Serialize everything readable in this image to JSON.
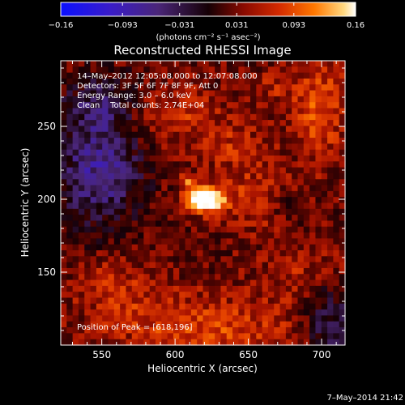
{
  "chart_data": {
    "type": "heatmap",
    "title": "Reconstructed RHESSI Image",
    "xlabel": "Heliocentric X (arcsec)",
    "ylabel": "Heliocentric Y (arcsec)",
    "xlim": [
      522,
      716
    ],
    "ylim": [
      100,
      295
    ],
    "x_ticks": [
      550,
      600,
      650,
      700
    ],
    "y_ticks": [
      150,
      200,
      250
    ],
    "colorbar": {
      "unit_label": "(photons cm⁻² s⁻¹ asec⁻²)",
      "range": [
        -0.16,
        0.16
      ],
      "tick_values": [
        -0.16,
        -0.093,
        -0.031,
        0.031,
        0.093,
        0.16
      ],
      "tick_labels": [
        "−0.16",
        "−0.093",
        "−0.031",
        "0.031",
        "0.093",
        "0.16"
      ]
    },
    "info_lines": [
      "14–May–2012 12:05:08.000 to 12:07:08.000",
      "Detectors: 3F 5F 6F 7F 8F 9F, Att 0",
      "Energy Range: 3.0 – 6.0 keV",
      "Clean    Total counts: 2.74E+04"
    ],
    "peak_label": "Position of Peak = [618,196]",
    "peak_position": [
      618,
      196
    ],
    "timestamp": "7–May–2014 21:42",
    "intensity_grid": {
      "cols": 48,
      "rows": 48,
      "x_range": [
        522,
        716
      ],
      "y_range": [
        100,
        295
      ],
      "seed": 7,
      "sources": [
        {
          "x": 620,
          "y": 200,
          "sx": 9,
          "sy": 6,
          "amp": 0.2
        },
        {
          "x": 610,
          "y": 213,
          "sx": 4,
          "sy": 3,
          "amp": 0.07
        },
        {
          "x": 655,
          "y": 200,
          "sx": 16,
          "sy": 14,
          "amp": 0.045
        },
        {
          "x": 698,
          "y": 262,
          "sx": 13,
          "sy": 26,
          "amp": 0.06
        },
        {
          "x": 668,
          "y": 278,
          "sx": 10,
          "sy": 8,
          "amp": 0.03
        },
        {
          "x": 600,
          "y": 258,
          "sx": 25,
          "sy": 14,
          "amp": 0.04
        },
        {
          "x": 620,
          "y": 110,
          "sx": 45,
          "sy": 18,
          "amp": 0.055
        },
        {
          "x": 560,
          "y": 140,
          "sx": 20,
          "sy": 15,
          "amp": 0.035
        },
        {
          "x": 690,
          "y": 150,
          "sx": 22,
          "sy": 16,
          "amp": 0.03
        },
        {
          "x": 640,
          "y": 235,
          "sx": 18,
          "sy": 12,
          "amp": 0.035
        },
        {
          "x": 548,
          "y": 220,
          "sx": 20,
          "sy": 26,
          "amp": -0.085
        },
        {
          "x": 550,
          "y": 265,
          "sx": 18,
          "sy": 14,
          "amp": -0.05
        },
        {
          "x": 705,
          "y": 118,
          "sx": 12,
          "sy": 20,
          "amp": -0.06
        },
        {
          "x": 675,
          "y": 195,
          "sx": 8,
          "sy": 8,
          "amp": -0.025
        }
      ],
      "baseline": 0.018,
      "noise_amp": 0.028
    }
  }
}
